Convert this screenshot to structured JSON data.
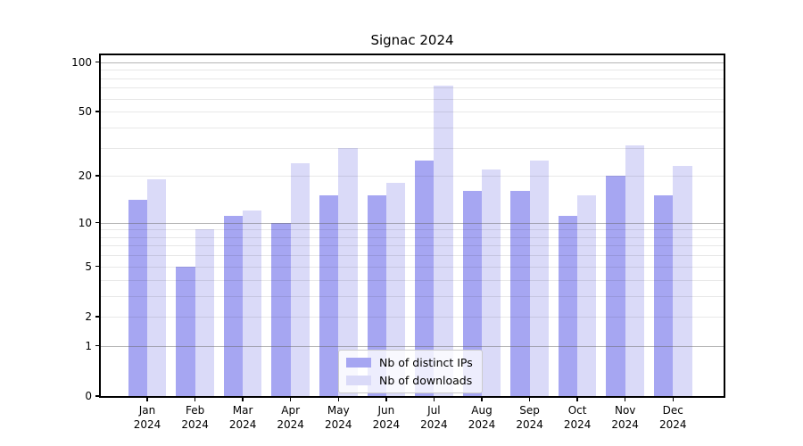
{
  "title": "Signac 2024",
  "legend": {
    "items": [
      {
        "label": "Nb of distinct IPs"
      },
      {
        "label": "Nb of downloads"
      }
    ]
  },
  "colors": {
    "ips_bar": "#a6a6f2",
    "downloads_bar": "#dadaf8",
    "grid_major": "#b0b0b0",
    "grid_minor": "#e9e9e9",
    "axis": "#000000",
    "legend_border": "#cccccc"
  },
  "chart_data": {
    "type": "bar",
    "title": "Signac 2024",
    "categories": [
      "Jan 2024",
      "Feb 2024",
      "Mar 2024",
      "Apr 2024",
      "May 2024",
      "Jun 2024",
      "Jul 2024",
      "Aug 2024",
      "Sep 2024",
      "Oct 2024",
      "Nov 2024",
      "Dec 2024"
    ],
    "series": [
      {
        "name": "Nb of distinct IPs",
        "color": "#a6a6f2",
        "values": [
          14,
          5,
          11,
          10,
          15,
          15,
          25,
          16,
          16,
          11,
          20,
          15
        ]
      },
      {
        "name": "Nb of downloads",
        "color": "#dadaf8",
        "values": [
          19,
          9,
          12,
          24,
          30,
          18,
          72,
          22,
          25,
          15,
          31,
          23
        ]
      }
    ],
    "xlabel": "",
    "ylabel": "",
    "yscale": "log1p",
    "ylim": [
      0,
      110
    ],
    "yticks": [
      0,
      1,
      2,
      5,
      10,
      20,
      50,
      100
    ],
    "grid": "both",
    "grid_major_at": [
      1,
      10,
      100
    ],
    "legend_position": "inside lower-center"
  }
}
